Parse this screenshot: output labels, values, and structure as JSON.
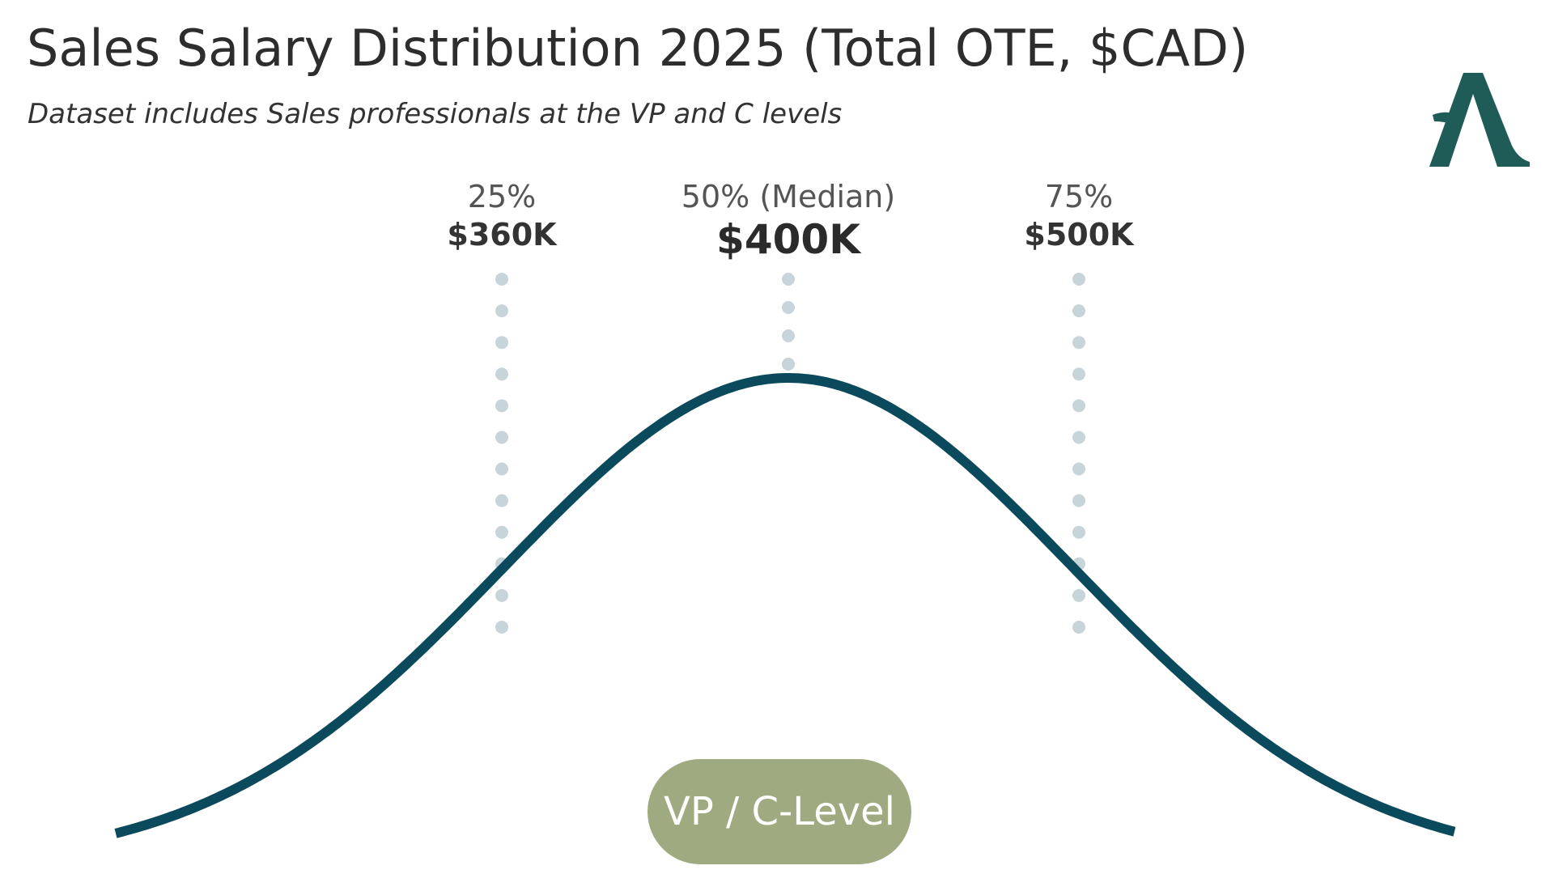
{
  "header": {
    "title": "Sales Salary Distribution 2025 (Total OTE, $CAD)",
    "subtitle": "Dataset includes Sales professionals at the VP and C levels"
  },
  "logo": {
    "icon": "a-letter-logo-icon",
    "color": "#1f5c57"
  },
  "colors": {
    "curve": "#0b4a5c",
    "dots": "#c7d4da",
    "pill": "#a0aa80",
    "pill_text": "#ffffff"
  },
  "chart_data": {
    "type": "line",
    "title": "Sales Salary Distribution 2025 (Total OTE, $CAD)",
    "subtitle": "Dataset includes Sales professionals at the VP and C levels",
    "curve_shape": "bell",
    "category_label": "VP / C-Level",
    "percentiles": [
      {
        "label": "25%",
        "value": 360,
        "value_label": "$360K"
      },
      {
        "label": "50% (Median)",
        "value": 400,
        "value_label": "$400K"
      },
      {
        "label": "75%",
        "value": 500,
        "value_label": "$500K"
      }
    ],
    "grid": false,
    "legend": "none"
  }
}
